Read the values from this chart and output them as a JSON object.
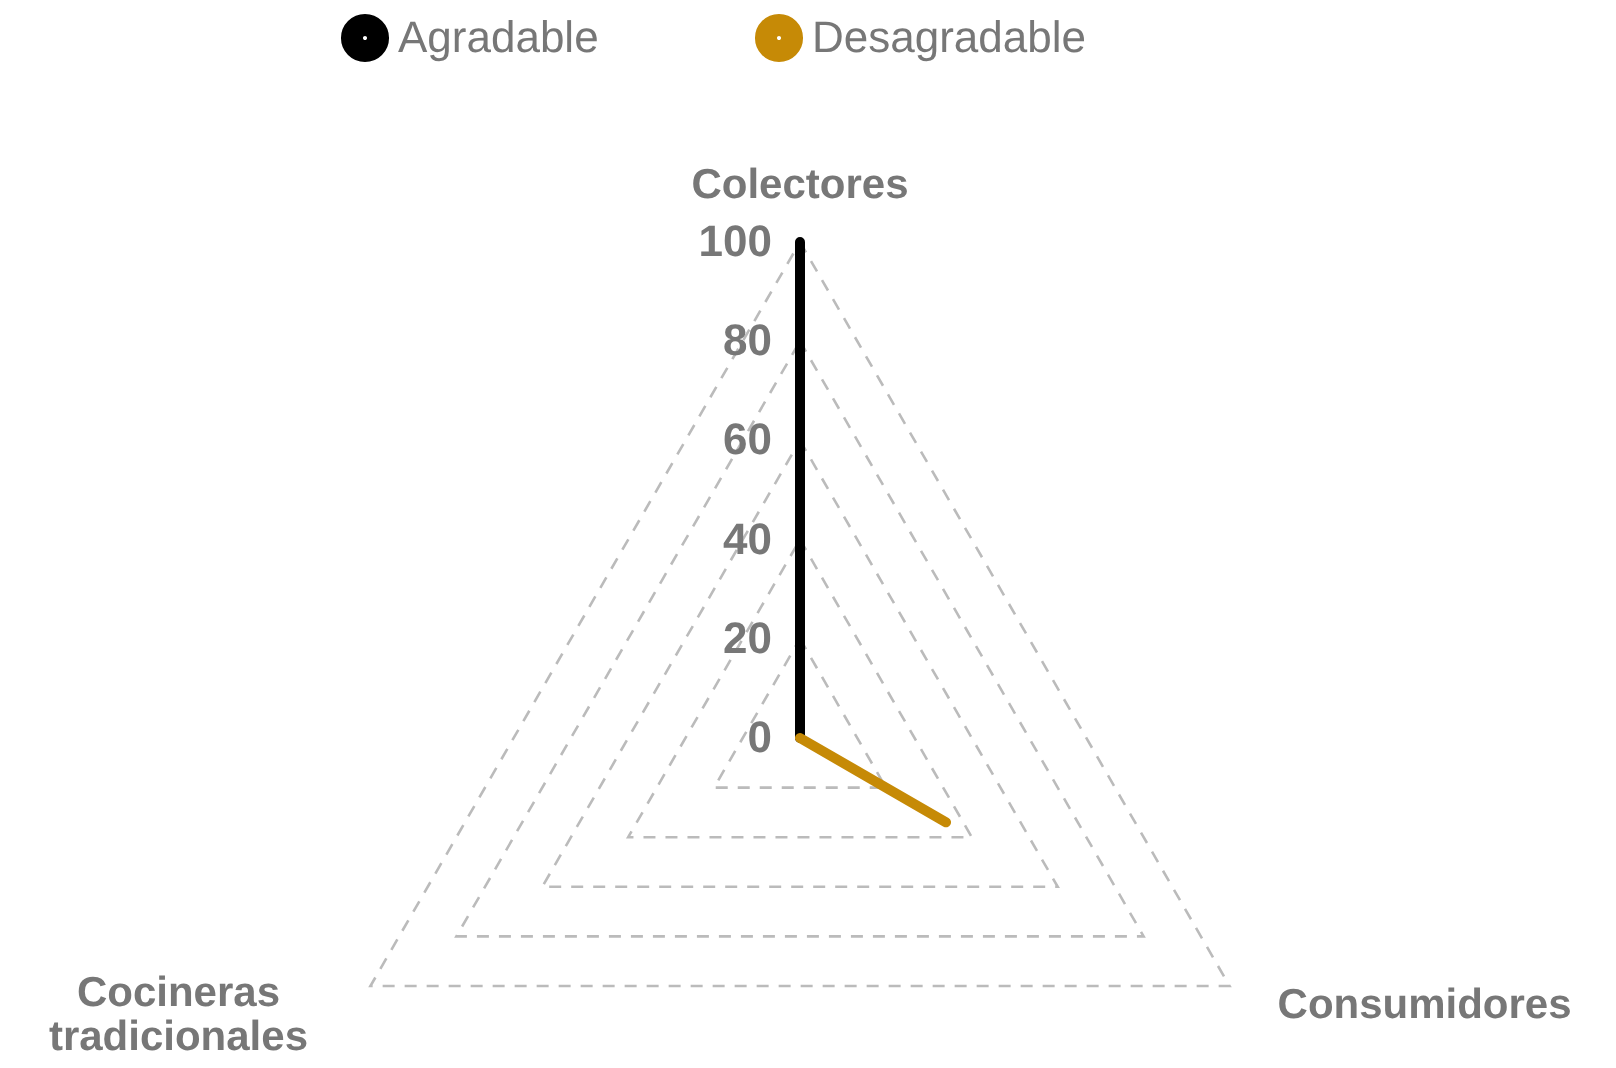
{
  "chart_data": {
    "type": "radar",
    "categories": [
      "Colectores",
      "Consumidores",
      "Cocineras tradicionales"
    ],
    "series": [
      {
        "name": "Agradable",
        "color": "#000000",
        "values": [
          100,
          0,
          0
        ]
      },
      {
        "name": "Desagradable",
        "color": "#c68a06",
        "values": [
          0,
          34,
          0
        ]
      }
    ],
    "ylim": [
      0,
      100
    ],
    "yticks": [
      0,
      20,
      40,
      60,
      80,
      100
    ],
    "grid": true,
    "legend": "top",
    "line_style": "solid"
  }
}
